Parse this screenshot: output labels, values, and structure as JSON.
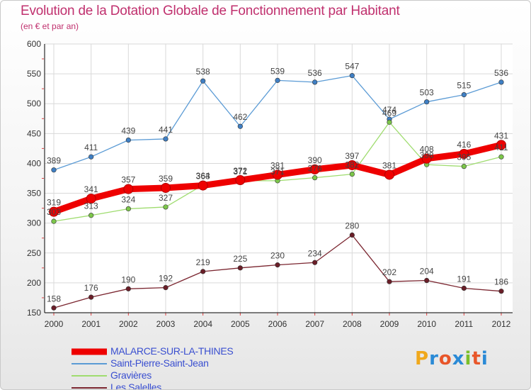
{
  "title": "Evolution de la Dotation Globale de Fonctionnement par Habitant",
  "subtitle": "(en € et par an)",
  "logo": {
    "text": "Proxiti",
    "letters": [
      "P",
      "r",
      "o",
      "x",
      "i",
      "t",
      "i"
    ],
    "colors": [
      "#f0a81c",
      "#2a8ad6",
      "#e8562a",
      "#2a8ad6",
      "#7bbf2a",
      "#e8562a",
      "#2a8ad6"
    ]
  },
  "chart_data": {
    "type": "line",
    "title": "Evolution de la Dotation Globale de Fonctionnement par Habitant",
    "subtitle": "(en € et par an)",
    "x": [
      "2000",
      "2001",
      "2002",
      "2003",
      "2004",
      "2005",
      "2006",
      "2007",
      "2008",
      "2009",
      "2010",
      "2011",
      "2012"
    ],
    "ylim": [
      150,
      600
    ],
    "yticks": [
      "150",
      "200",
      "250",
      "300",
      "350",
      "400",
      "450",
      "500",
      "550",
      "600"
    ],
    "grid": true,
    "legend_position": "bottom-left",
    "series": [
      {
        "name": "Saint-Pierre-Saint-Jean",
        "color": "#5b9bd5",
        "marker": "#3f7fc4",
        "thick": false,
        "values": [
          389,
          411,
          439,
          441,
          538,
          462,
          539,
          536,
          547,
          474,
          503,
          515,
          536
        ],
        "labels": [
          "389",
          "411",
          "439",
          "441",
          "538",
          "462",
          "539",
          "536",
          "547",
          "474",
          "503",
          "515",
          "536"
        ]
      },
      {
        "name": "Gravières",
        "color": "#9fdc6f",
        "marker": "#7cc64a",
        "thick": false,
        "values": [
          303,
          313,
          324,
          327,
          364,
          371,
          371,
          376,
          382,
          469,
          398,
          395,
          411
        ],
        "labels": [
          "303",
          "313",
          "324",
          "327",
          "364",
          "371",
          "371",
          "376",
          "382",
          "469",
          "398",
          "395",
          "411"
        ]
      },
      {
        "name": "Les Salelles",
        "color": "#7b2630",
        "marker": "#6a1e28",
        "thick": false,
        "values": [
          158,
          176,
          190,
          192,
          219,
          225,
          230,
          234,
          280,
          202,
          204,
          191,
          186
        ],
        "labels": [
          "158",
          "176",
          "190",
          "192",
          "219",
          "225",
          "230",
          "234",
          "280",
          "202",
          "204",
          "191",
          "186"
        ]
      },
      {
        "name": "MALARCE-SUR-LA-THINES",
        "color": "#ee0000",
        "marker": "#ee0000",
        "thick": true,
        "values": [
          319,
          341,
          357,
          359,
          363,
          372,
          381,
          390,
          397,
          381,
          408,
          416,
          431
        ],
        "labels": [
          "319",
          "341",
          "357",
          "359",
          "363",
          "372",
          "381",
          "390",
          "397",
          "381",
          "408",
          "416",
          "431"
        ]
      }
    ],
    "legend_order": [
      "MALARCE-SUR-LA-THINES",
      "Saint-Pierre-Saint-Jean",
      "Gravières",
      "Les Salelles"
    ]
  }
}
